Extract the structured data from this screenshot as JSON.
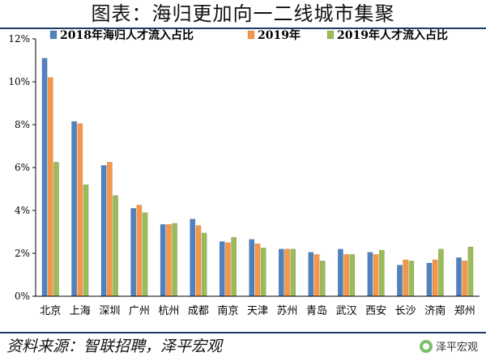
{
  "header": {
    "title": "图表：海归更加向一二线城市集聚"
  },
  "footer": {
    "source": "资料来源：智联招聘，泽平宏观",
    "watermark": "泽平宏观"
  },
  "chart_data": {
    "type": "bar",
    "title": "",
    "xlabel": "",
    "ylabel": "",
    "ylim": [
      0,
      12
    ],
    "yticks": [
      "0%",
      "2%",
      "4%",
      "6%",
      "8%",
      "10%",
      "12%"
    ],
    "grid": false,
    "legend_position": "top",
    "categories": [
      "北京",
      "上海",
      "深圳",
      "广州",
      "杭州",
      "成都",
      "南京",
      "天津",
      "苏州",
      "青岛",
      "武汉",
      "西安",
      "长沙",
      "济南",
      "郑州"
    ],
    "series": [
      {
        "name": "2018年海归人才流入占比",
        "color": "#4f81bd",
        "values": [
          11.1,
          8.15,
          6.1,
          4.1,
          3.35,
          3.6,
          2.55,
          2.65,
          2.2,
          2.05,
          2.2,
          2.05,
          1.45,
          1.55,
          1.8
        ]
      },
      {
        "name": "2019年",
        "color": "#f79646",
        "values": [
          10.2,
          8.05,
          6.25,
          4.25,
          3.35,
          3.3,
          2.5,
          2.45,
          2.2,
          1.95,
          1.95,
          1.95,
          1.7,
          1.7,
          1.65
        ]
      },
      {
        "name": "2019年人才流入占比",
        "color": "#9bbb59",
        "values": [
          6.25,
          5.2,
          4.7,
          3.9,
          3.4,
          2.95,
          2.75,
          2.25,
          2.2,
          1.65,
          1.95,
          2.15,
          1.65,
          2.2,
          2.3
        ]
      }
    ]
  }
}
